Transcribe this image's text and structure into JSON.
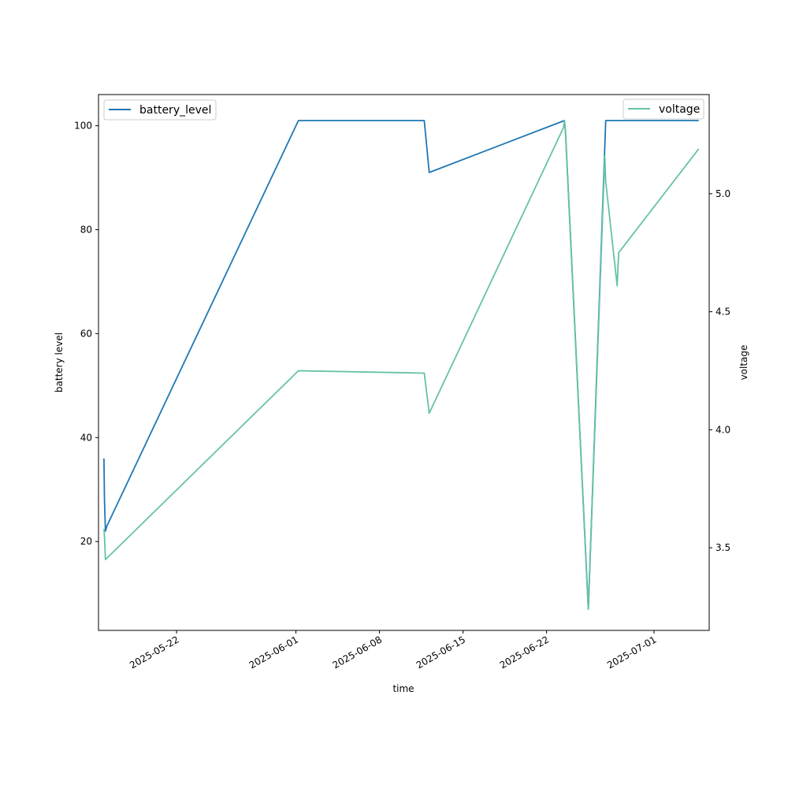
{
  "chart_data": {
    "type": "line",
    "xlabel": "time",
    "ylabel": "battery level",
    "y2label": "voltage",
    "x_axis": "date",
    "xlim": [
      "2025-05-15T11:00",
      "2025-07-05T15:00"
    ],
    "ylim": [
      2.9,
      106.0
    ],
    "y2lim": [
      3.15,
      5.42
    ],
    "xticks": [
      {
        "value": "2025-05-22",
        "label": "2025-05-22"
      },
      {
        "value": "2025-06-01",
        "label": "2025-06-01"
      },
      {
        "value": "2025-06-08",
        "label": "2025-06-08"
      },
      {
        "value": "2025-06-15",
        "label": "2025-06-15"
      },
      {
        "value": "2025-06-22",
        "label": "2025-06-22"
      },
      {
        "value": "2025-07-01",
        "label": "2025-07-01"
      }
    ],
    "yticks": [
      20,
      40,
      60,
      80,
      100
    ],
    "y2ticks": [
      {
        "value": 3.5,
        "label": "3.5"
      },
      {
        "value": 4.0,
        "label": "4.0"
      },
      {
        "value": 4.5,
        "label": "4.5"
      },
      {
        "value": 5.0,
        "label": "5.0"
      }
    ],
    "grid": false,
    "series": [
      {
        "name": "battery_level",
        "axis": "left",
        "color": "#1f77b4",
        "legend_position": "upper-left",
        "points": [
          {
            "x": "2025-05-15T22:00",
            "y": 36
          },
          {
            "x": "2025-05-15T23:00",
            "y": 28
          },
          {
            "x": "2025-05-16T01:00",
            "y": 22
          },
          {
            "x": "2025-05-16T04:00",
            "y": 23
          },
          {
            "x": "2025-06-01T05:00",
            "y": 101
          },
          {
            "x": "2025-06-11T18:00",
            "y": 101
          },
          {
            "x": "2025-06-12T04:00",
            "y": 91
          },
          {
            "x": "2025-06-23T12:00",
            "y": 101
          },
          {
            "x": "2025-06-23T14:00",
            "y": 99
          },
          {
            "x": "2025-06-25T12:00",
            "y": 7
          },
          {
            "x": "2025-06-26T23:00",
            "y": 101
          },
          {
            "x": "2025-07-04T18:00",
            "y": 101
          }
        ]
      },
      {
        "name": "voltage",
        "axis": "right",
        "color": "#66c2a5",
        "legend_position": "upper-right",
        "points": [
          {
            "x": "2025-05-15T22:00",
            "y": 3.58
          },
          {
            "x": "2025-05-15T23:00",
            "y": 3.55
          },
          {
            "x": "2025-05-16T01:00",
            "y": 3.45
          },
          {
            "x": "2025-06-01T05:00",
            "y": 4.25
          },
          {
            "x": "2025-06-11T18:00",
            "y": 4.24
          },
          {
            "x": "2025-06-12T04:00",
            "y": 4.07
          },
          {
            "x": "2025-06-23T10:00",
            "y": 5.28
          },
          {
            "x": "2025-06-23T12:00",
            "y": 5.31
          },
          {
            "x": "2025-06-23T14:00",
            "y": 5.26
          },
          {
            "x": "2025-06-25T12:00",
            "y": 3.24
          },
          {
            "x": "2025-06-26T21:00",
            "y": 5.16
          },
          {
            "x": "2025-06-26T23:00",
            "y": 5.05
          },
          {
            "x": "2025-06-27T22:00",
            "y": 4.61
          },
          {
            "x": "2025-06-28T01:00",
            "y": 4.75
          },
          {
            "x": "2025-07-04T18:00",
            "y": 5.19
          }
        ]
      }
    ]
  }
}
